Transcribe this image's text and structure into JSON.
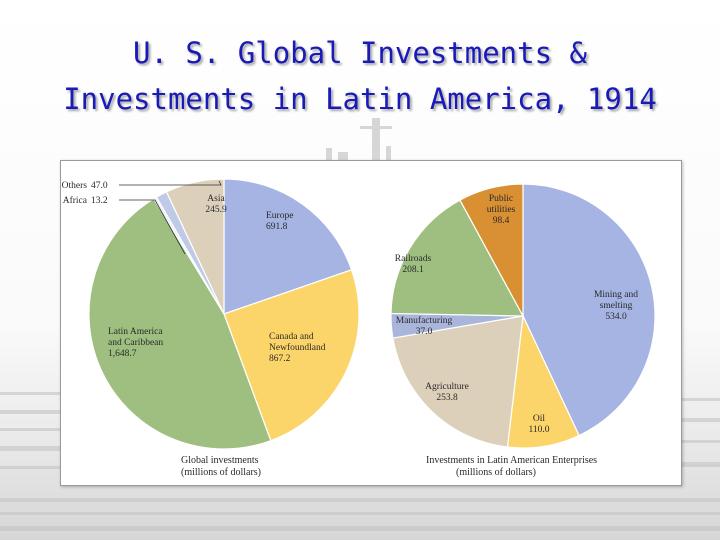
{
  "slide": {
    "title_line1": "U. S. Global Investments &",
    "title_line2": "Investments in Latin America, 1914"
  },
  "chart_data": [
    {
      "type": "pie",
      "caption_line1": "Global investments",
      "caption_line2": "(millions of dollars)",
      "slices": [
        {
          "label": [
            "Europe"
          ],
          "value": 691.8,
          "display": "691.8",
          "color": "#a5b4e3"
        },
        {
          "label": [
            "Canada and",
            "Newfoundland"
          ],
          "value": 867.2,
          "display": "867.2",
          "color": "#fcd56a"
        },
        {
          "label": [
            "Latin America",
            "and Caribbean"
          ],
          "value": 1648.7,
          "display": "1,648.7",
          "color": "#9ebf7f"
        },
        {
          "label": [
            "Africa"
          ],
          "value": 13.2,
          "display": "13.2",
          "color": "#eef0f5"
        },
        {
          "label": [
            "Others"
          ],
          "value": 47.0,
          "display": "47.0",
          "color": "#bfcbe6"
        },
        {
          "label": [
            "Asia"
          ],
          "value": 245.9,
          "display": "245.9",
          "color": "#ddd0bb"
        }
      ]
    },
    {
      "type": "pie",
      "caption_line1": "Investments in Latin American Enterprises",
      "caption_line2": "(millions of dollars)",
      "slices": [
        {
          "label": [
            "Mining and",
            "smelting"
          ],
          "value": 534.0,
          "display": "534.0",
          "color": "#a5b4e3"
        },
        {
          "label": [
            "Oil"
          ],
          "value": 110.0,
          "display": "110.0",
          "color": "#fcd56a"
        },
        {
          "label": [
            "Agriculture"
          ],
          "value": 253.8,
          "display": "253.8",
          "color": "#ddd0bb"
        },
        {
          "label": [
            "Manufacturing"
          ],
          "value": 37.0,
          "display": "37.0",
          "color": "#aab5dc"
        },
        {
          "label": [
            "Railroads"
          ],
          "value": 208.1,
          "display": "208.1",
          "color": "#9ebf7f"
        },
        {
          "label": [
            "Public",
            "utilities"
          ],
          "value": 98.4,
          "display": "98.4",
          "color": "#d99032"
        }
      ]
    }
  ]
}
